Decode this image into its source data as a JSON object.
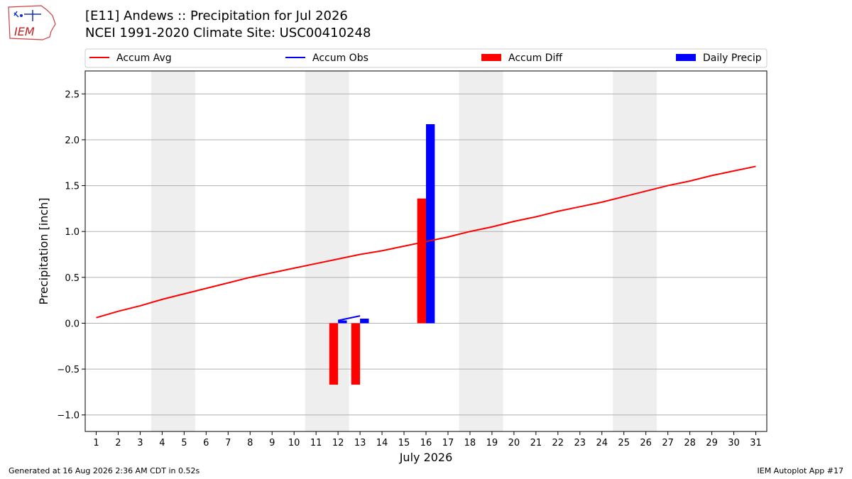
{
  "header": {
    "title": "[E11] Andews :: Precipitation for Jul 2026",
    "subtitle": "NCEI 1991-2020 Climate Site: USC00410248",
    "logo_text": "IEM"
  },
  "footer": {
    "left": "Generated at 16 Aug 2026 2:36 AM CDT in 0.52s",
    "right": "IEM Autoplot App #17"
  },
  "colors": {
    "avg": "#ff0000",
    "obs": "#0000ff",
    "diff": "#ff0000",
    "daily": "#0000ff",
    "weekend": "#eeeeee",
    "grid": "#b0b0b0"
  },
  "chart_data": {
    "type": "bar",
    "xlabel": "July 2026",
    "ylabel": "Precipitation [inch]",
    "ylim": [
      -1.18,
      2.75
    ],
    "yticks": [
      -1.0,
      -0.5,
      0.0,
      0.5,
      1.0,
      1.5,
      2.0,
      2.5
    ],
    "ytick_labels": [
      "−1.0",
      "−0.5",
      "0.0",
      "0.5",
      "1.0",
      "1.5",
      "2.0",
      "2.5"
    ],
    "days": [
      1,
      2,
      3,
      4,
      5,
      6,
      7,
      8,
      9,
      10,
      11,
      12,
      13,
      14,
      15,
      16,
      17,
      18,
      19,
      20,
      21,
      22,
      23,
      24,
      25,
      26,
      27,
      28,
      29,
      30,
      31
    ],
    "weekend_spans": [
      [
        4,
        5
      ],
      [
        11,
        12
      ],
      [
        18,
        19
      ],
      [
        25,
        26
      ]
    ],
    "grid": "horizontal",
    "legend": {
      "placement": "top",
      "entries": [
        {
          "label": "Accum Avg",
          "kind": "line",
          "color": "#ff0000"
        },
        {
          "label": "Accum Obs",
          "kind": "line",
          "color": "#0000ff"
        },
        {
          "label": "Accum Diff",
          "kind": "bar",
          "color": "#ff0000"
        },
        {
          "label": "Daily Precip",
          "kind": "bar",
          "color": "#0000ff"
        }
      ]
    },
    "series": [
      {
        "name": "Accum Avg",
        "kind": "line",
        "x": [
          1,
          2,
          3,
          4,
          5,
          6,
          7,
          8,
          9,
          10,
          11,
          12,
          13,
          14,
          15,
          16,
          17,
          18,
          19,
          20,
          21,
          22,
          23,
          24,
          25,
          26,
          27,
          28,
          29,
          30,
          31
        ],
        "values": [
          0.06,
          0.13,
          0.19,
          0.26,
          0.32,
          0.38,
          0.44,
          0.5,
          0.55,
          0.6,
          0.65,
          0.7,
          0.75,
          0.79,
          0.84,
          0.89,
          0.94,
          1.0,
          1.05,
          1.11,
          1.16,
          1.22,
          1.27,
          1.32,
          1.38,
          1.44,
          1.5,
          1.55,
          1.61,
          1.66,
          1.71
        ]
      },
      {
        "name": "Accum Obs",
        "kind": "line",
        "x": [
          12,
          13
        ],
        "values": [
          0.03,
          0.08
        ]
      },
      {
        "name": "Accum Diff",
        "kind": "bar",
        "x": [
          12,
          13,
          16
        ],
        "values": [
          -0.67,
          -0.67,
          1.36
        ]
      },
      {
        "name": "Daily Precip",
        "kind": "bar",
        "x": [
          12,
          13,
          16
        ],
        "values": [
          0.03,
          0.05,
          2.17
        ]
      }
    ]
  }
}
